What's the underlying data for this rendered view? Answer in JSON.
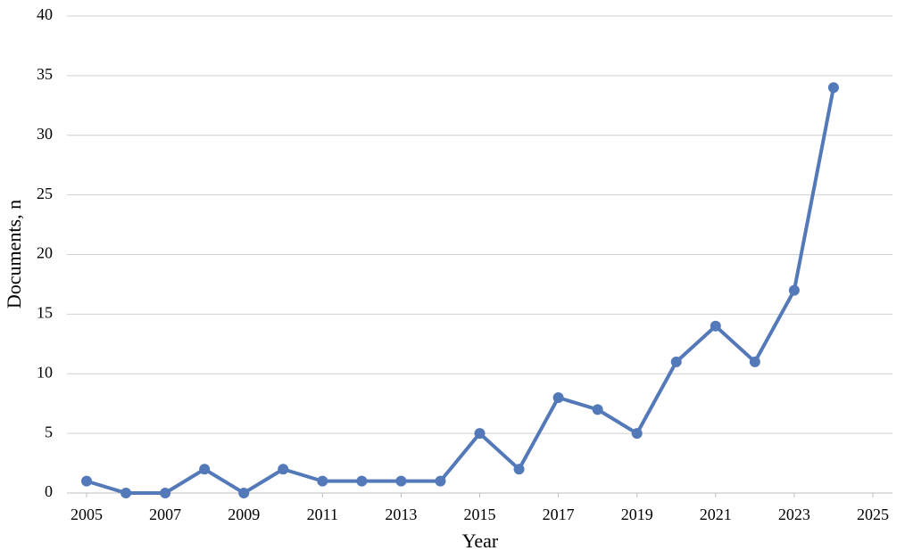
{
  "chart_data": {
    "type": "line",
    "x_label": "Year",
    "y_label": "Documents, n",
    "x": [
      2005,
      2006,
      2007,
      2008,
      2009,
      2010,
      2011,
      2012,
      2013,
      2014,
      2015,
      2016,
      2017,
      2018,
      2019,
      2020,
      2021,
      2022,
      2023,
      2024
    ],
    "series": [
      {
        "name": "Documents",
        "color": "#5479b9",
        "values": [
          1,
          0,
          0,
          2,
          0,
          2,
          1,
          1,
          1,
          1,
          5,
          2,
          8,
          7,
          5,
          11,
          14,
          11,
          17,
          34
        ]
      }
    ],
    "xlim": [
      2004.5,
      2025.5
    ],
    "xticks": [
      2005,
      2007,
      2009,
      2011,
      2013,
      2015,
      2017,
      2019,
      2021,
      2023,
      2025
    ],
    "ylim": [
      0,
      40
    ],
    "yticks": [
      0,
      5,
      10,
      15,
      20,
      25,
      30,
      35,
      40
    ],
    "grid": true
  }
}
